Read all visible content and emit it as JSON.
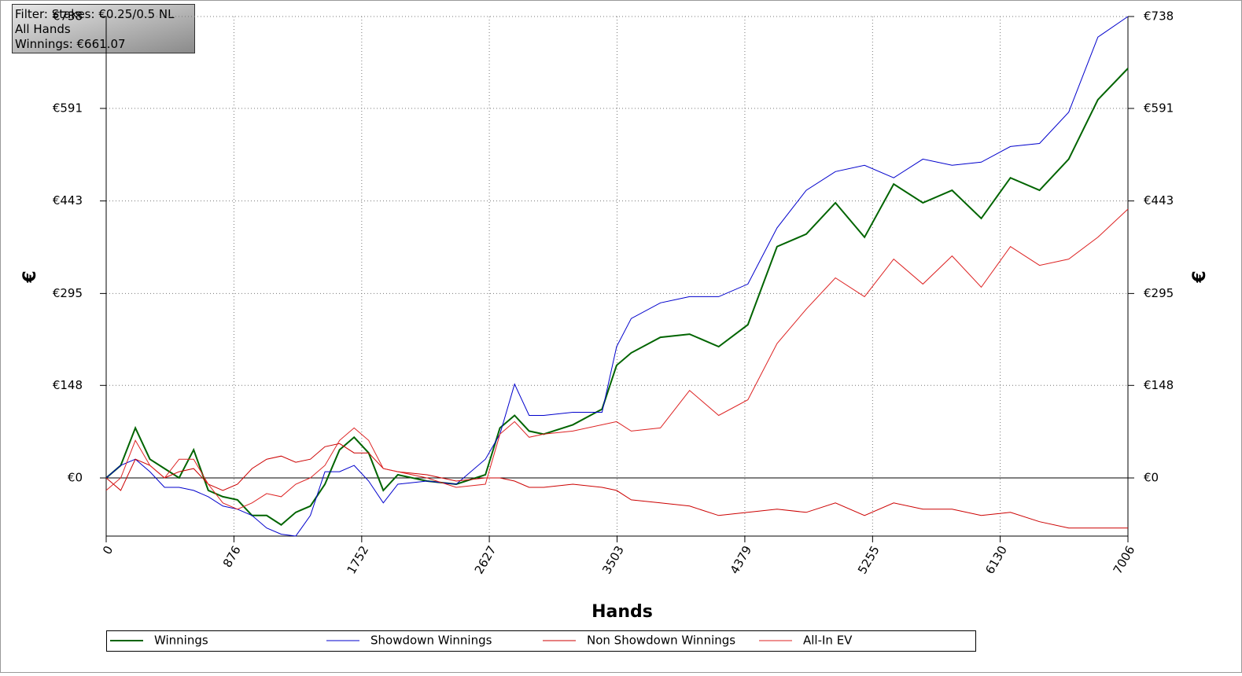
{
  "chart_data": {
    "type": "line",
    "annotations": [
      "Filter: Stakes: €0.25/0.5 NL",
      "All Hands",
      "Winnings: €661.07"
    ],
    "x_label": "Hands",
    "y_label": "€",
    "y2_label": "€",
    "x": [
      0,
      100,
      200,
      300,
      400,
      500,
      600,
      700,
      800,
      900,
      1000,
      1100,
      1200,
      1300,
      1400,
      1500,
      1600,
      1700,
      1800,
      1900,
      2000,
      2200,
      2400,
      2600,
      2700,
      2800,
      2900,
      3000,
      3200,
      3400,
      3500,
      3600,
      3800,
      4000,
      4200,
      4400,
      4600,
      4800,
      5000,
      5200,
      5400,
      5600,
      5800,
      6000,
      6200,
      6400,
      6600,
      6800,
      7006
    ],
    "series": [
      {
        "name": "Winnings",
        "color": "#006400",
        "values": [
          0,
          20,
          80,
          30,
          15,
          0,
          45,
          -20,
          -30,
          -35,
          -60,
          -60,
          -75,
          -55,
          -45,
          -10,
          45,
          65,
          40,
          -20,
          5,
          -5,
          -10,
          5,
          80,
          100,
          75,
          70,
          85,
          110,
          180,
          200,
          225,
          230,
          210,
          245,
          370,
          390,
          440,
          385,
          470,
          440,
          460,
          415,
          480,
          460,
          510,
          605,
          655
        ]
      },
      {
        "name": "Showdown Winnings",
        "color": "#0000cc",
        "values": [
          0,
          20,
          30,
          10,
          -15,
          -15,
          -20,
          -30,
          -45,
          -50,
          -60,
          -80,
          -90,
          -93,
          -60,
          10,
          10,
          20,
          -5,
          -40,
          -10,
          -5,
          -10,
          30,
          70,
          150,
          100,
          100,
          105,
          105,
          210,
          255,
          280,
          290,
          290,
          310,
          400,
          460,
          490,
          500,
          480,
          510,
          500,
          505,
          530,
          535,
          585,
          705,
          738
        ]
      },
      {
        "name": "Non Showdown Winnings",
        "color": "#cc0000",
        "values": [
          0,
          -20,
          30,
          20,
          0,
          10,
          15,
          -10,
          -20,
          -10,
          15,
          30,
          35,
          25,
          30,
          50,
          55,
          40,
          40,
          15,
          10,
          5,
          -5,
          0,
          0,
          -5,
          -15,
          -15,
          -10,
          -15,
          -20,
          -35,
          -40,
          -45,
          -60,
          -55,
          -50,
          -55,
          -40,
          -60,
          -40,
          -50,
          -50,
          -60,
          -55,
          -70,
          -80,
          -80,
          -80
        ]
      },
      {
        "name": "All-In EV",
        "color": "#dd2222",
        "values": [
          -20,
          0,
          60,
          20,
          0,
          30,
          30,
          -10,
          -40,
          -50,
          -40,
          -25,
          -30,
          -10,
          0,
          20,
          60,
          80,
          60,
          15,
          10,
          0,
          -15,
          -10,
          70,
          90,
          65,
          70,
          75,
          85,
          90,
          75,
          80,
          140,
          100,
          125,
          215,
          270,
          320,
          290,
          350,
          310,
          355,
          305,
          370,
          340,
          350,
          385,
          430
        ]
      }
    ],
    "xlim": [
      0,
      7006
    ],
    "xticks": [
      0,
      876,
      1752,
      2627,
      3503,
      4379,
      5255,
      6130,
      7006
    ],
    "ylim": [
      -93,
      738
    ],
    "yticks": [
      {
        "value": 0,
        "label": "€0"
      },
      {
        "value": 148,
        "label": "€148"
      },
      {
        "value": 295,
        "label": "€295"
      },
      {
        "value": 443,
        "label": "€443"
      },
      {
        "value": 591,
        "label": "€591"
      },
      {
        "value": 738,
        "label": "€738"
      }
    ],
    "y2lim": [
      -93,
      738
    ],
    "y2ticks": [
      {
        "value": 0,
        "label": "€0"
      },
      {
        "value": 148,
        "label": "€148"
      },
      {
        "value": 295,
        "label": "€295"
      },
      {
        "value": 443,
        "label": "€443"
      },
      {
        "value": 591,
        "label": "€591"
      },
      {
        "value": 738,
        "label": "€738"
      }
    ],
    "grid": true,
    "legend": "bottom"
  }
}
